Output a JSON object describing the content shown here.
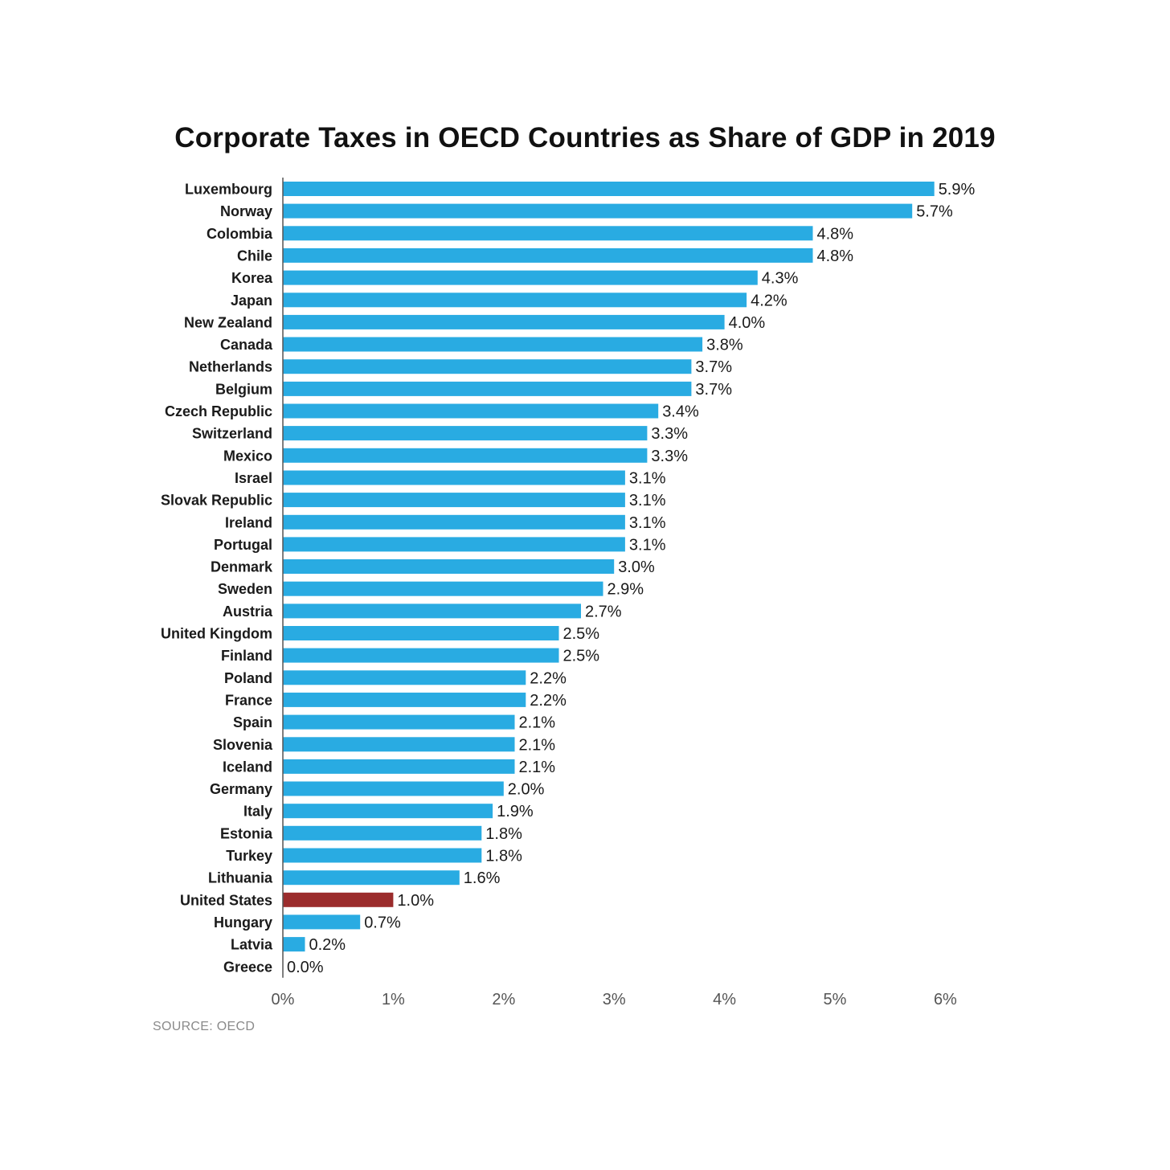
{
  "chart_data": {
    "type": "bar",
    "orientation": "horizontal",
    "title": "Corporate Taxes in OECD Countries as Share of GDP in 2019",
    "source": "SOURCE: OECD",
    "xlim": [
      0,
      6
    ],
    "x_ticks": [
      0,
      1,
      2,
      3,
      4,
      5,
      6
    ],
    "x_tick_labels": [
      "0%",
      "1%",
      "2%",
      "3%",
      "4%",
      "5%",
      "6%"
    ],
    "grid": false,
    "bar_color": "#29abe2",
    "highlight_color": "#9b2c2c",
    "highlight_category": "United States",
    "categories": [
      "Luxembourg",
      "Norway",
      "Colombia",
      "Chile",
      "Korea",
      "Japan",
      "New Zealand",
      "Canada",
      "Netherlands",
      "Belgium",
      "Czech Republic",
      "Switzerland",
      "Mexico",
      "Israel",
      "Slovak Republic",
      "Ireland",
      "Portugal",
      "Denmark",
      "Sweden",
      "Austria",
      "United Kingdom",
      "Finland",
      "Poland",
      "France",
      "Spain",
      "Slovenia",
      "Iceland",
      "Germany",
      "Italy",
      "Estonia",
      "Turkey",
      "Lithuania",
      "United States",
      "Hungary",
      "Latvia",
      "Greece"
    ],
    "values": [
      5.9,
      5.7,
      4.8,
      4.8,
      4.3,
      4.2,
      4.0,
      3.8,
      3.7,
      3.7,
      3.4,
      3.3,
      3.3,
      3.1,
      3.1,
      3.1,
      3.1,
      3.0,
      2.9,
      2.7,
      2.5,
      2.5,
      2.2,
      2.2,
      2.1,
      2.1,
      2.1,
      2.0,
      1.9,
      1.8,
      1.8,
      1.6,
      1.0,
      0.7,
      0.2,
      0.0
    ],
    "value_labels": [
      "5.9%",
      "5.7%",
      "4.8%",
      "4.8%",
      "4.3%",
      "4.2%",
      "4.0%",
      "3.8%",
      "3.7%",
      "3.7%",
      "3.4%",
      "3.3%",
      "3.3%",
      "3.1%",
      "3.1%",
      "3.1%",
      "3.1%",
      "3.0%",
      "2.9%",
      "2.7%",
      "2.5%",
      "2.5%",
      "2.2%",
      "2.2%",
      "2.1%",
      "2.1%",
      "2.1%",
      "2.0%",
      "1.9%",
      "1.8%",
      "1.8%",
      "1.6%",
      "1.0%",
      "0.7%",
      "0.2%",
      "0.0%"
    ]
  }
}
